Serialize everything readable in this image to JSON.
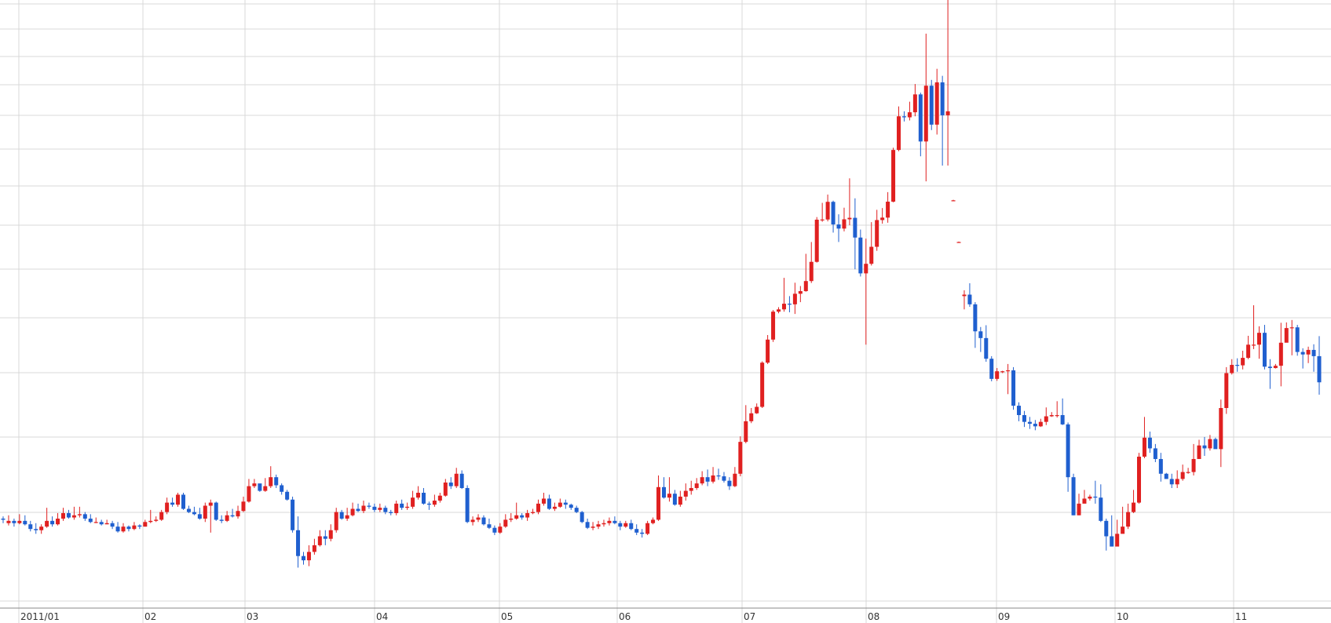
{
  "chart_data": {
    "type": "candlestick",
    "title": "",
    "xlabel": "",
    "ylabel": "",
    "grid": true,
    "x_tick_labels": [
      "2011/01",
      "02",
      "03",
      "04",
      "05",
      "06",
      "07",
      "08",
      "09",
      "10",
      "11"
    ],
    "y_scale": "log",
    "price_range": [
      88,
      3300
    ],
    "colors": {
      "up": "#e02020",
      "down": "#1f5fcf",
      "grid": "#d8d8d8"
    },
    "candles": [
      [
        150,
        149,
        152,
        146
      ],
      [
        146,
        148,
        153,
        144
      ],
      [
        148,
        146,
        150,
        143
      ],
      [
        146,
        148,
        154,
        145
      ],
      [
        148,
        145,
        153,
        144
      ],
      [
        145,
        141,
        148,
        139
      ],
      [
        141,
        140,
        146,
        137
      ],
      [
        140,
        143,
        145,
        137
      ],
      [
        143,
        148,
        160,
        142
      ],
      [
        148,
        145,
        152,
        143
      ],
      [
        145,
        150,
        155,
        144
      ],
      [
        150,
        155,
        160,
        148
      ],
      [
        155,
        151,
        158,
        150
      ],
      [
        151,
        153,
        161,
        149
      ],
      [
        153,
        154,
        161,
        151
      ],
      [
        154,
        150,
        156,
        148
      ],
      [
        150,
        147,
        154,
        146
      ],
      [
        147,
        147,
        151,
        146
      ],
      [
        147,
        145,
        149,
        144
      ],
      [
        145,
        146,
        149,
        145
      ],
      [
        146,
        143,
        148,
        141
      ],
      [
        143,
        139,
        147,
        138
      ],
      [
        139,
        143,
        146,
        138
      ],
      [
        143,
        141,
        144,
        139
      ],
      [
        141,
        144,
        147,
        140
      ],
      [
        144,
        143,
        145,
        141
      ],
      [
        143,
        147,
        149,
        143
      ],
      [
        147,
        148,
        158,
        146
      ],
      [
        148,
        149,
        152,
        147
      ],
      [
        149,
        156,
        158,
        148
      ],
      [
        156,
        165,
        170,
        154
      ],
      [
        165,
        163,
        170,
        161
      ],
      [
        163,
        173,
        175,
        161
      ],
      [
        173,
        159,
        175,
        158
      ],
      [
        159,
        156,
        162,
        155
      ],
      [
        156,
        154,
        161,
        153
      ],
      [
        154,
        150,
        160,
        149
      ],
      [
        150,
        162,
        165,
        147
      ],
      [
        162,
        165,
        168,
        138
      ],
      [
        165,
        149,
        166,
        148
      ],
      [
        149,
        148,
        153,
        146
      ],
      [
        148,
        153,
        157,
        147
      ],
      [
        153,
        152,
        159,
        151
      ],
      [
        152,
        157,
        162,
        150
      ],
      [
        157,
        166,
        171,
        156
      ],
      [
        166,
        182,
        190,
        165
      ],
      [
        182,
        185,
        190,
        180
      ],
      [
        185,
        177,
        183,
        176
      ],
      [
        177,
        182,
        191,
        176
      ],
      [
        182,
        192,
        205,
        180
      ],
      [
        192,
        183,
        195,
        180
      ],
      [
        183,
        176,
        185,
        173
      ],
      [
        176,
        168,
        178,
        167
      ],
      [
        168,
        140,
        171,
        138
      ],
      [
        140,
        120,
        152,
        112
      ],
      [
        120,
        117,
        123,
        114
      ],
      [
        117,
        123,
        128,
        113
      ],
      [
        123,
        128,
        133,
        121
      ],
      [
        128,
        135,
        140,
        127
      ],
      [
        135,
        133,
        140,
        128
      ],
      [
        133,
        140,
        145,
        131
      ],
      [
        140,
        156,
        160,
        138
      ],
      [
        156,
        150,
        158,
        149
      ],
      [
        150,
        153,
        160,
        148
      ],
      [
        153,
        159,
        165,
        152
      ],
      [
        159,
        157,
        164,
        156
      ],
      [
        157,
        162,
        167,
        155
      ],
      [
        162,
        161,
        165,
        159
      ],
      [
        161,
        158,
        164,
        156
      ],
      [
        158,
        160,
        164,
        156
      ],
      [
        160,
        156,
        162,
        154
      ],
      [
        156,
        155,
        158,
        153
      ],
      [
        155,
        164,
        167,
        153
      ],
      [
        164,
        160,
        168,
        158
      ],
      [
        160,
        161,
        165,
        158
      ],
      [
        161,
        170,
        177,
        159
      ],
      [
        170,
        175,
        182,
        168
      ],
      [
        175,
        164,
        180,
        163
      ],
      [
        164,
        163,
        166,
        158
      ],
      [
        163,
        167,
        173,
        161
      ],
      [
        167,
        172,
        175,
        165
      ],
      [
        172,
        186,
        190,
        171
      ],
      [
        186,
        182,
        192,
        179
      ],
      [
        182,
        196,
        203,
        180
      ],
      [
        196,
        180,
        200,
        179
      ],
      [
        180,
        147,
        183,
        146
      ],
      [
        147,
        149,
        152,
        144
      ],
      [
        149,
        151,
        154,
        147
      ],
      [
        151,
        145,
        153,
        144
      ],
      [
        145,
        142,
        150,
        141
      ],
      [
        142,
        138,
        144,
        136
      ],
      [
        138,
        143,
        146,
        137
      ],
      [
        143,
        149,
        154,
        142
      ],
      [
        149,
        150,
        155,
        147
      ],
      [
        150,
        153,
        165,
        149
      ],
      [
        153,
        151,
        155,
        149
      ],
      [
        151,
        155,
        158,
        148
      ],
      [
        155,
        156,
        159,
        154
      ],
      [
        156,
        164,
        168,
        154
      ],
      [
        164,
        169,
        175,
        162
      ],
      [
        169,
        159,
        173,
        158
      ],
      [
        159,
        161,
        165,
        157
      ],
      [
        161,
        165,
        169,
        160
      ],
      [
        165,
        163,
        168,
        159
      ],
      [
        163,
        160,
        164,
        158
      ],
      [
        160,
        156,
        162,
        155
      ],
      [
        156,
        147,
        157,
        146
      ],
      [
        147,
        142,
        150,
        141
      ],
      [
        142,
        143,
        147,
        140
      ],
      [
        143,
        145,
        148,
        141
      ],
      [
        145,
        146,
        149,
        143
      ],
      [
        146,
        148,
        151,
        144
      ],
      [
        148,
        146,
        152,
        145
      ],
      [
        146,
        143,
        148,
        140
      ],
      [
        143,
        146,
        148,
        142
      ],
      [
        146,
        141,
        149,
        140
      ],
      [
        141,
        138,
        145,
        136
      ],
      [
        138,
        137,
        141,
        134
      ],
      [
        137,
        146,
        148,
        136
      ],
      [
        146,
        149,
        151,
        145
      ],
      [
        149,
        181,
        194,
        148
      ],
      [
        181,
        170,
        192,
        169
      ],
      [
        170,
        174,
        192,
        166
      ],
      [
        174,
        163,
        178,
        162
      ],
      [
        163,
        171,
        177,
        161
      ],
      [
        171,
        177,
        185,
        167
      ],
      [
        177,
        180,
        188,
        173
      ],
      [
        180,
        185,
        191,
        178
      ],
      [
        185,
        192,
        199,
        183
      ],
      [
        192,
        187,
        201,
        182
      ],
      [
        187,
        194,
        204,
        185
      ],
      [
        194,
        193,
        202,
        189
      ],
      [
        193,
        188,
        198,
        186
      ],
      [
        188,
        182,
        192,
        178
      ],
      [
        182,
        196,
        204,
        181
      ],
      [
        196,
        237,
        245,
        193
      ],
      [
        237,
        268,
        295,
        235
      ],
      [
        268,
        281,
        290,
        265
      ],
      [
        281,
        292,
        298,
        280
      ],
      [
        292,
        380,
        383,
        290
      ],
      [
        380,
        436,
        448,
        377
      ],
      [
        436,
        515,
        520,
        430
      ],
      [
        515,
        522,
        529,
        510
      ],
      [
        522,
        540,
        630,
        515
      ],
      [
        540,
        538,
        565,
        513
      ],
      [
        538,
        573,
        612,
        508
      ],
      [
        573,
        582,
        600,
        545
      ],
      [
        582,
        618,
        727,
        580
      ],
      [
        618,
        693,
        780,
        611
      ],
      [
        693,
        891,
        905,
        690
      ],
      [
        891,
        892,
        985,
        880
      ],
      [
        892,
        991,
        1035,
        882
      ],
      [
        991,
        866,
        998,
        825
      ],
      [
        866,
        845,
        920,
        780
      ],
      [
        845,
        893,
        957,
        831
      ],
      [
        893,
        901,
        1140,
        862
      ],
      [
        901,
        801,
        1012,
        663
      ],
      [
        801,
        647,
        840,
        635
      ],
      [
        647,
        685,
        796,
        423
      ],
      [
        685,
        758,
        878,
        678
      ],
      [
        758,
        889,
        945,
        740
      ],
      [
        889,
        902,
        955,
        870
      ],
      [
        902,
        992,
        1050,
        875
      ],
      [
        992,
        1350,
        1368,
        988
      ],
      [
        1350,
        1650,
        1750,
        1340
      ],
      [
        1650,
        1640,
        1700,
        1600
      ],
      [
        1640,
        1690,
        1800,
        1610
      ],
      [
        1690,
        1880,
        2000,
        1650
      ],
      [
        1880,
        1420,
        1900,
        1300
      ],
      [
        1420,
        1980,
        2700,
        1120
      ],
      [
        1980,
        1570,
        2050,
        1520
      ],
      [
        1570,
        2020,
        2190,
        1480
      ],
      [
        2020,
        1660,
        2100,
        1230
      ],
      [
        1660,
        1700,
        3320,
        1230
      ],
      [
        1000,
        1000,
        1003,
        997
      ],
      [
        780,
        780,
        782,
        778
      ],
      [
        565,
        570,
        585,
        522
      ],
      [
        570,
        538,
        610,
        530
      ],
      [
        538,
        458,
        545,
        415
      ],
      [
        458,
        440,
        470,
        405
      ],
      [
        440,
        389,
        475,
        382
      ],
      [
        389,
        345,
        395,
        340
      ],
      [
        345,
        361,
        368,
        341
      ],
      [
        361,
        361,
        362,
        357
      ],
      [
        361,
        363,
        377,
        315
      ],
      [
        363,
        294,
        370,
        287
      ],
      [
        294,
        278,
        300,
        268
      ],
      [
        278,
        267,
        285,
        259
      ],
      [
        267,
        264,
        275,
        256
      ],
      [
        264,
        260,
        270,
        254
      ],
      [
        260,
        267,
        272,
        259
      ],
      [
        267,
        276,
        291,
        262
      ],
      [
        276,
        278,
        283,
        275
      ],
      [
        278,
        278,
        302,
        274
      ],
      [
        278,
        263,
        307,
        262
      ],
      [
        263,
        192,
        266,
        176
      ],
      [
        192,
        153,
        196,
        153
      ],
      [
        153,
        164,
        174,
        153
      ],
      [
        164,
        169,
        178,
        168
      ],
      [
        169,
        171,
        173,
        167
      ],
      [
        171,
        170,
        188,
        164
      ],
      [
        170,
        148,
        184,
        147
      ],
      [
        148,
        135,
        150,
        124
      ],
      [
        135,
        127,
        153,
        127
      ],
      [
        127,
        137,
        149,
        136
      ],
      [
        137,
        143,
        161,
        141
      ],
      [
        143,
        156,
        164,
        141
      ],
      [
        156,
        165,
        178,
        155
      ],
      [
        165,
        217,
        222,
        164
      ],
      [
        217,
        243,
        275,
        215
      ],
      [
        243,
        228,
        252,
        222
      ],
      [
        228,
        214,
        234,
        210
      ],
      [
        214,
        196,
        222,
        187
      ],
      [
        196,
        190,
        197,
        190
      ],
      [
        190,
        184,
        196,
        180
      ],
      [
        184,
        190,
        200,
        180
      ],
      [
        190,
        198,
        207,
        188
      ],
      [
        198,
        198,
        203,
        196
      ],
      [
        198,
        214,
        234,
        194
      ],
      [
        214,
        232,
        240,
        229
      ],
      [
        232,
        228,
        244,
        218
      ],
      [
        228,
        241,
        247,
        225
      ],
      [
        241,
        227,
        243,
        228
      ],
      [
        227,
        290,
        305,
        204
      ],
      [
        290,
        357,
        370,
        280
      ],
      [
        357,
        375,
        388,
        354
      ],
      [
        375,
        374,
        390,
        360
      ],
      [
        374,
        391,
        408,
        365
      ],
      [
        391,
        423,
        446,
        388
      ],
      [
        423,
        423,
        535,
        412
      ],
      [
        423,
        454,
        472,
        389
      ],
      [
        454,
        371,
        476,
        365
      ],
      [
        371,
        368,
        388,
        325
      ],
      [
        368,
        373,
        377,
        367
      ],
      [
        373,
        428,
        482,
        330
      ],
      [
        428,
        467,
        483,
        455
      ],
      [
        467,
        469,
        490,
        397
      ],
      [
        469,
        405,
        476,
        396
      ],
      [
        405,
        399,
        414,
        367
      ],
      [
        399,
        410,
        418,
        379
      ],
      [
        410,
        395,
        424,
        360
      ],
      [
        395,
        338,
        445,
        314
      ]
    ]
  }
}
